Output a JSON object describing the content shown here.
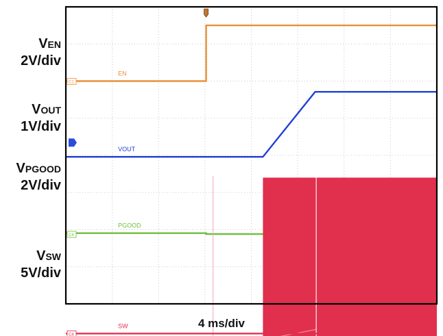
{
  "chart_data": {
    "type": "line",
    "title": "",
    "xlabel": "4 ms/div",
    "time_per_div_ms": 4,
    "divisions": 8,
    "x_unit": "ms",
    "xlim": [
      0,
      32
    ],
    "grid": true,
    "channels": [
      {
        "id": "C1",
        "tag": "C1",
        "trace_label": "EN",
        "axis_label_main": "V",
        "axis_label_sub": "EN",
        "scale": "2V/div",
        "volts_per_div": 2,
        "baseline_div": 2.0,
        "color": "#e88f38",
        "x": [
          0,
          12.1,
          12.1,
          32
        ],
        "y": [
          0,
          0,
          3.0,
          3.0
        ]
      },
      {
        "id": "C2",
        "tag": "",
        "trace_label": "VOUT",
        "axis_label_main": "V",
        "axis_label_sub": "OUT",
        "scale": "1V/div",
        "volts_per_div": 1,
        "baseline_div": 4.04,
        "color": "#1f3fd6",
        "x": [
          0,
          17.0,
          21.5,
          32
        ],
        "y": [
          0,
          0,
          1.75,
          1.75
        ]
      },
      {
        "id": "C3",
        "tag": "C4",
        "trace_label": "PGOOD",
        "axis_label_main": "V",
        "axis_label_sub": "PGOOD",
        "scale": "2V/div",
        "volts_per_div": 2,
        "baseline_div": 6.12,
        "color": "#6fbf3d",
        "x": [
          0,
          12.1,
          12.1,
          21.6,
          21.6,
          32
        ],
        "y": [
          0.05,
          0.05,
          0,
          0,
          2.5,
          2.5
        ]
      },
      {
        "id": "C4",
        "tag": "C4",
        "trace_label": "SW",
        "axis_label_main": "V",
        "axis_label_sub": "SW",
        "scale": "5V/div",
        "volts_per_div": 5,
        "baseline_div": 8.8,
        "color": "#e0304e",
        "x": [
          0,
          17.0,
          32
        ],
        "y": [
          0,
          0,
          0
        ],
        "switching": {
          "start_ms": 17.0,
          "end_ms": 32,
          "high_v": 21,
          "ramp_end_ms": 21.6
        },
        "glitch_ms": 12.7
      }
    ]
  }
}
